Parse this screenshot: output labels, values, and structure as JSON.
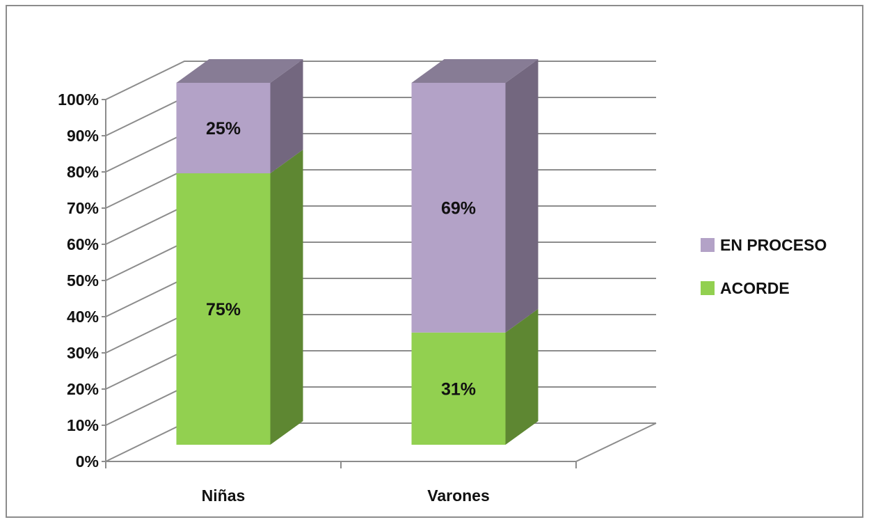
{
  "chart_data": {
    "type": "bar",
    "stacked": true,
    "three_d": true,
    "percent_scale": true,
    "categories": [
      "Niñas",
      "Varones"
    ],
    "series": [
      {
        "name": "ACORDE",
        "values": [
          75,
          31
        ],
        "labels": [
          "75%",
          "31%"
        ],
        "color": "#92d050",
        "side_color": "#5e8732"
      },
      {
        "name": "EN PROCESO",
        "values": [
          25,
          69
        ],
        "labels": [
          "25%",
          "69%"
        ],
        "color": "#b3a2c7",
        "side_color": "#73677f",
        "top_color": "#877c95"
      }
    ],
    "ylim": [
      0,
      100
    ],
    "yticks": [
      "0%",
      "10%",
      "20%",
      "30%",
      "40%",
      "50%",
      "60%",
      "70%",
      "80%",
      "90%",
      "100%"
    ],
    "grid": true,
    "legend": {
      "position": "right",
      "order": [
        "EN PROCESO",
        "ACORDE"
      ]
    },
    "title": "",
    "xlabel": "",
    "ylabel": ""
  }
}
